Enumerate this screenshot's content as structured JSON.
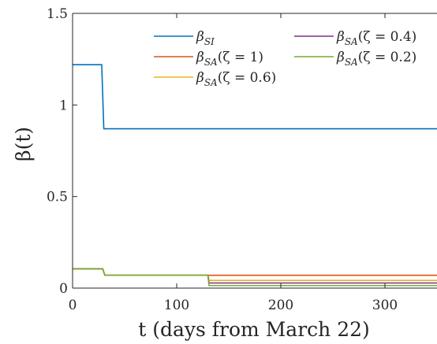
{
  "chart_data": {
    "type": "line",
    "title": "",
    "xlabel": "t (days from March 22)",
    "ylabel": "β(t)",
    "xlim": [
      0,
      350
    ],
    "ylim": [
      0,
      1.5
    ],
    "xticks": [
      0,
      100,
      200,
      300
    ],
    "xtick_labels": [
      "0",
      "100",
      "200",
      "300"
    ],
    "yticks": [
      0,
      0.5,
      1,
      1.5
    ],
    "ytick_labels": [
      "0",
      "0.5",
      "1",
      "1.5"
    ],
    "grid": false,
    "legend_placement": "top-right",
    "series": [
      {
        "name": "β_SI",
        "color": "#0072BD",
        "points": [
          [
            0,
            1.22
          ],
          [
            28,
            1.22
          ],
          [
            30,
            0.87
          ],
          [
            350,
            0.87
          ]
        ]
      },
      {
        "name": "β_SA(ζ = 1)",
        "color": "#D95319",
        "points": [
          [
            0,
            0.105
          ],
          [
            29,
            0.105
          ],
          [
            31,
            0.07
          ],
          [
            350,
            0.07
          ]
        ]
      },
      {
        "name": "β_SA(ζ = 0.6)",
        "color": "#EDB120",
        "points": [
          [
            0,
            0.105
          ],
          [
            29,
            0.105
          ],
          [
            31,
            0.07
          ],
          [
            130,
            0.07
          ],
          [
            131,
            0.042
          ],
          [
            350,
            0.042
          ]
        ]
      },
      {
        "name": "β_SA(ζ = 0.4)",
        "color": "#7E2F8E",
        "points": [
          [
            0,
            0.105
          ],
          [
            29,
            0.105
          ],
          [
            31,
            0.07
          ],
          [
            130,
            0.07
          ],
          [
            131,
            0.028
          ],
          [
            350,
            0.028
          ]
        ]
      },
      {
        "name": "β_SA(ζ = 0.2)",
        "color": "#77AC30",
        "points": [
          [
            0,
            0.105
          ],
          [
            29,
            0.105
          ],
          [
            31,
            0.07
          ],
          [
            130,
            0.07
          ],
          [
            131,
            0.014
          ],
          [
            350,
            0.014
          ]
        ]
      }
    ],
    "legend": [
      {
        "base": "β",
        "sub": "SI",
        "suffix": "",
        "color": "#0072BD"
      },
      {
        "base": "β",
        "sub": "SA",
        "suffix": "(ζ = 1)",
        "color": "#D95319"
      },
      {
        "base": "β",
        "sub": "SA",
        "suffix": "(ζ = 0.6)",
        "color": "#EDB120"
      },
      {
        "base": "β",
        "sub": "SA",
        "suffix": "(ζ = 0.4)",
        "color": "#7E2F8E"
      },
      {
        "base": "β",
        "sub": "SA",
        "suffix": "(ζ = 0.2)",
        "color": "#77AC30"
      }
    ]
  }
}
